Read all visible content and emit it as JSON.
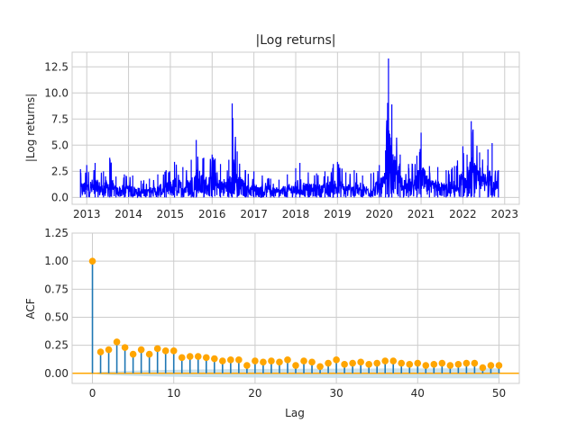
{
  "chart_data": [
    {
      "type": "line",
      "title": "|Log returns|",
      "xlabel": "",
      "ylabel": "|Log returns|",
      "xlim": [
        2012.65,
        2023.35
      ],
      "ylim": [
        -0.66,
        13.9
      ],
      "grid": true,
      "line_color": "#0000ff",
      "x_ticks": [
        2013,
        2014,
        2015,
        2016,
        2017,
        2018,
        2019,
        2020,
        2021,
        2022,
        2023
      ],
      "x_tick_labels": [
        "2013",
        "2014",
        "2015",
        "2016",
        "2017",
        "2018",
        "2019",
        "2020",
        "2021",
        "2022",
        "2023"
      ],
      "y_ticks": [
        0,
        2.5,
        5,
        7.5,
        10,
        12.5
      ],
      "y_tick_labels": [
        "0.0",
        "2.5",
        "5.0",
        "7.5",
        "10.0",
        "12.5"
      ],
      "series": [
        {
          "x": [
            2012.85,
            2013.0,
            2013.2,
            2013.4,
            2013.55,
            2013.7,
            2013.9,
            2014.1,
            2014.3,
            2014.5,
            2014.7,
            2014.9,
            2015.1,
            2015.3,
            2015.5,
            2015.62,
            2015.8,
            2016.0,
            2016.2,
            2016.4,
            2016.48,
            2016.6,
            2016.8,
            2017.0,
            2017.2,
            2017.4,
            2017.6,
            2017.8,
            2018.0,
            2018.1,
            2018.3,
            2018.5,
            2018.7,
            2018.9,
            2019.0,
            2019.2,
            2019.4,
            2019.6,
            2019.8,
            2020.0,
            2020.15,
            2020.22,
            2020.3,
            2020.5,
            2020.7,
            2020.9,
            2021.0,
            2021.2,
            2021.4,
            2021.6,
            2021.8,
            2022.0,
            2022.1,
            2022.2,
            2022.4,
            2022.6,
            2022.7,
            2022.85
          ],
          "peaks": [
            2.7,
            3.1,
            3.3,
            2.5,
            3.8,
            2.0,
            2.2,
            2.1,
            1.6,
            1.8,
            2.2,
            2.6,
            3.4,
            2.9,
            3.6,
            5.5,
            3.8,
            4.1,
            3.2,
            3.6,
            9.0,
            4.4,
            2.6,
            2.5,
            2.1,
            1.8,
            1.7,
            2.2,
            2.8,
            3.3,
            2.4,
            2.3,
            2.5,
            3.2,
            3.4,
            2.4,
            2.6,
            2.1,
            2.3,
            3.1,
            4.5,
            13.3,
            8.9,
            4.1,
            3.2,
            4.0,
            6.2,
            3.0,
            2.9,
            2.6,
            3.0,
            4.9,
            4.1,
            7.3,
            4.3,
            4.6,
            5.2,
            2.6
          ]
        }
      ]
    },
    {
      "type": "stem",
      "title": "",
      "xlabel": "Lag",
      "ylabel": "ACF",
      "xlim": [
        -2.5,
        52.5
      ],
      "ylim": [
        -0.09,
        1.25
      ],
      "grid": true,
      "stem_color": "#1f77b4",
      "marker_color": "#ffa500",
      "baseline_color": "#ffa500",
      "band_color": "#bfdbe8",
      "x_ticks": [
        0,
        10,
        20,
        30,
        40,
        50
      ],
      "x_tick_labels": [
        "0",
        "10",
        "20",
        "30",
        "40",
        "50"
      ],
      "y_ticks": [
        0,
        0.25,
        0.5,
        0.75,
        1.0,
        1.25
      ],
      "y_tick_labels": [
        "0.00",
        "0.25",
        "0.50",
        "0.75",
        "1.00",
        "1.25"
      ],
      "lags": [
        0,
        1,
        2,
        3,
        4,
        5,
        6,
        7,
        8,
        9,
        10,
        11,
        12,
        13,
        14,
        15,
        16,
        17,
        18,
        19,
        20,
        21,
        22,
        23,
        24,
        25,
        26,
        27,
        28,
        29,
        30,
        31,
        32,
        33,
        34,
        35,
        36,
        37,
        38,
        39,
        40,
        41,
        42,
        43,
        44,
        45,
        46,
        47,
        48,
        49,
        50
      ],
      "acf": [
        1.0,
        0.19,
        0.21,
        0.28,
        0.23,
        0.17,
        0.21,
        0.17,
        0.22,
        0.2,
        0.2,
        0.14,
        0.15,
        0.15,
        0.14,
        0.13,
        0.11,
        0.12,
        0.12,
        0.07,
        0.11,
        0.1,
        0.11,
        0.1,
        0.12,
        0.07,
        0.11,
        0.1,
        0.06,
        0.09,
        0.12,
        0.08,
        0.09,
        0.1,
        0.08,
        0.09,
        0.11,
        0.11,
        0.09,
        0.08,
        0.09,
        0.07,
        0.08,
        0.09,
        0.07,
        0.08,
        0.09,
        0.09,
        0.05,
        0.07,
        0.07
      ],
      "conf_band": [
        0.0,
        0.012,
        0.015,
        0.018,
        0.021,
        0.023,
        0.025,
        0.027,
        0.028,
        0.03,
        0.031,
        0.032,
        0.033,
        0.034,
        0.035,
        0.035,
        0.036,
        0.037,
        0.037,
        0.038,
        0.038,
        0.039,
        0.039,
        0.039,
        0.04,
        0.04,
        0.04,
        0.041,
        0.041,
        0.041,
        0.041,
        0.042,
        0.042,
        0.042,
        0.042,
        0.042,
        0.043,
        0.043,
        0.043,
        0.043,
        0.043,
        0.043,
        0.043,
        0.044,
        0.044,
        0.044,
        0.044,
        0.044,
        0.044,
        0.044,
        0.044
      ]
    }
  ]
}
